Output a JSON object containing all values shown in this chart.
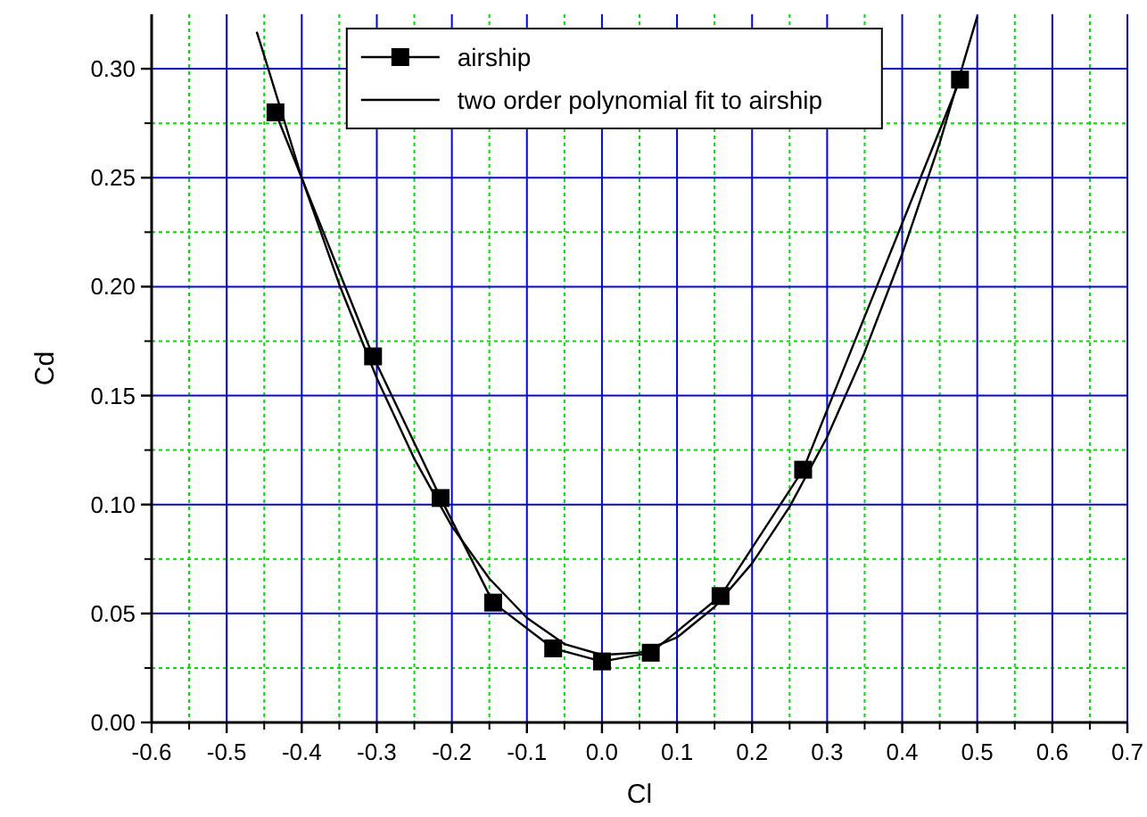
{
  "chart_data": {
    "type": "line",
    "xlabel": "Cl",
    "ylabel": "Cd",
    "xlim": [
      -0.6,
      0.7
    ],
    "ylim": [
      0,
      0.325
    ],
    "xticks": [
      -0.6,
      {
        "value": -0.55,
        "label": null
      },
      -0.5,
      {
        "value": -0.45,
        "label": null
      },
      -0.4,
      {
        "value": -0.35,
        "label": null
      },
      -0.3,
      {
        "value": -0.25,
        "label": null
      },
      -0.2,
      {
        "value": -0.15,
        "label": null
      },
      -0.1,
      {
        "value": -0.05,
        "label": null
      },
      {
        "value": 0,
        "label": "0.0"
      },
      {
        "value": 0.05,
        "label": null
      },
      0.1,
      {
        "value": 0.15,
        "label": null
      },
      0.2,
      {
        "value": 0.25,
        "label": null
      },
      0.3,
      {
        "value": 0.35,
        "label": null
      },
      0.4,
      {
        "value": 0.45,
        "label": null
      },
      0.5,
      {
        "value": 0.55,
        "label": null
      },
      0.6,
      {
        "value": 0.65,
        "label": null
      },
      0.7
    ],
    "yticks": [
      {
        "value": 0,
        "label": "0.00"
      },
      {
        "value": 0.025,
        "label": null
      },
      0.05,
      {
        "value": 0.075,
        "label": null
      },
      {
        "value": 0.1,
        "label": "0.10"
      },
      {
        "value": 0.125,
        "label": null
      },
      0.15,
      {
        "value": 0.175,
        "label": null
      },
      {
        "value": 0.2,
        "label": "0.20"
      },
      {
        "value": 0.225,
        "label": null
      },
      0.25,
      {
        "value": 0.275,
        "label": null
      },
      {
        "value": 0.3,
        "label": "0.30"
      }
    ],
    "grid": true,
    "legend": "top",
    "series": [
      {
        "name": "airship",
        "color": "#000000",
        "marker": "square",
        "x": [
          -0.435,
          -0.305,
          -0.215,
          -0.145,
          -0.065,
          0.0,
          0.065,
          0.158,
          0.268,
          0.477
        ],
        "values": [
          0.28,
          0.168,
          0.103,
          0.055,
          0.034,
          0.028,
          0.032,
          0.058,
          0.116,
          0.295
        ]
      },
      {
        "name": "two order polynomial fit to airship",
        "color": "#000000",
        "marker": "none",
        "x": [
          -0.46,
          -0.45,
          -0.4,
          -0.35,
          -0.3,
          -0.25,
          -0.2,
          -0.15,
          -0.1,
          -0.05,
          0.0,
          0.05,
          0.1,
          0.15,
          0.2,
          0.25,
          0.3,
          0.35,
          0.4,
          0.45,
          0.5
        ],
        "values": [
          0.317,
          0.306,
          0.25,
          0.201,
          0.158,
          0.121,
          0.09,
          0.066,
          0.048,
          0.036,
          0.031,
          0.032,
          0.039,
          0.053,
          0.073,
          0.099,
          0.131,
          0.17,
          0.215,
          0.266,
          0.324
        ]
      }
    ]
  }
}
